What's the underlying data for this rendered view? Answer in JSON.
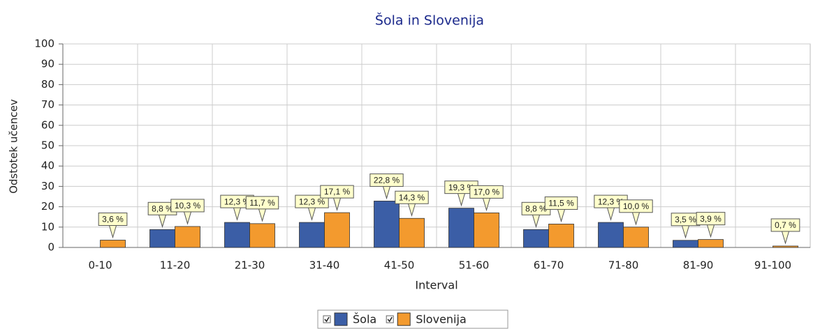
{
  "chart_data": {
    "type": "bar",
    "subtitle": "Šola in Slovenija",
    "x_label": "Interval",
    "y_label": "Odstotek učencev",
    "categories": [
      "0-10",
      "11-20",
      "21-30",
      "31-40",
      "41-50",
      "51-60",
      "61-70",
      "71-80",
      "81-90",
      "91-100"
    ],
    "series": [
      {
        "name": "Šola",
        "color": "#3b5ea6",
        "values": [
          null,
          8.8,
          12.3,
          12.3,
          22.8,
          19.3,
          8.8,
          12.3,
          3.5,
          null
        ],
        "value_labels": [
          null,
          "8,8 %",
          "12,3 %",
          "12,3 %",
          "22,8 %",
          "19,3 %",
          "8,8 %",
          "12,3 %",
          "3,5 %",
          null
        ]
      },
      {
        "name": "Slovenija",
        "color": "#f39a2e",
        "values": [
          3.6,
          10.3,
          11.7,
          17.1,
          14.3,
          17.0,
          11.5,
          10.0,
          3.9,
          0.7
        ],
        "value_labels": [
          "3,6 %",
          "10,3 %",
          "11,7 %",
          "17,1 %",
          "14,3 %",
          "17,0 %",
          "11,5 %",
          "10,0 %",
          "3,9 %",
          "0,7 %"
        ]
      }
    ],
    "ylim": [
      0,
      100
    ],
    "yticks": [
      0,
      10,
      20,
      30,
      40,
      50,
      60,
      70,
      80,
      90,
      100
    ],
    "grid": true,
    "legend": "bottom"
  }
}
